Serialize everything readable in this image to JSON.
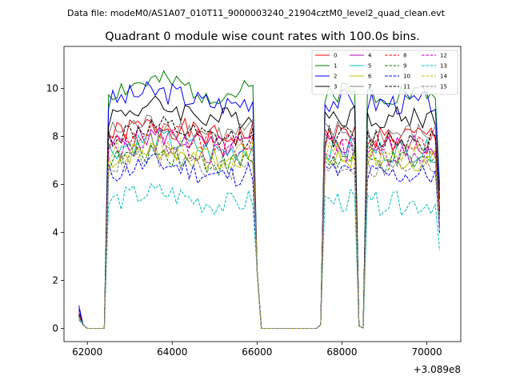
{
  "suptitle": "Data file: modeM0/AS1A07_010T11_9000003240_21904cztM0_level2_quad_clean.evt",
  "chart_data": {
    "type": "line",
    "title": "Quadrant 0 module wise count rates with 100.0s bins.",
    "xlabel": "",
    "ylabel": "",
    "x_offset_label": "+3.089e8",
    "xlim": [
      61450,
      70800
    ],
    "ylim": [
      -0.55,
      11.75
    ],
    "x_ticks": [
      62000,
      64000,
      66000,
      68000,
      70000
    ],
    "x_tick_labels": [
      "62000",
      "64000",
      "66000",
      "68000",
      "70000"
    ],
    "y_ticks": [
      0,
      2,
      4,
      6,
      8,
      10
    ],
    "y_tick_labels": [
      "0",
      "2",
      "4",
      "6",
      "8",
      "10"
    ],
    "grid": false,
    "legend_position": "top-right",
    "x_start": 61800,
    "x_step": 100,
    "series": [
      {
        "name": "0",
        "color": "#ff0000",
        "dash": "solid",
        "level": 8.2,
        "amp": 0.35,
        "low_end": 0.7,
        "seed": 1
      },
      {
        "name": "1",
        "color": "#008000",
        "dash": "solid",
        "level": 10.0,
        "amp": 0.35,
        "low_end": 0.5,
        "seed": 2
      },
      {
        "name": "2",
        "color": "#0000ff",
        "dash": "solid",
        "level": 9.6,
        "amp": 0.35,
        "low_end": 0.95,
        "seed": 3
      },
      {
        "name": "3",
        "color": "#000000",
        "dash": "solid",
        "level": 9.0,
        "amp": 0.35,
        "low_end": 0.6,
        "seed": 4
      },
      {
        "name": "4",
        "color": "#bf00bf",
        "dash": "solid",
        "level": 7.8,
        "amp": 0.35,
        "low_end": 0.5,
        "seed": 5
      },
      {
        "name": "5",
        "color": "#00bfbf",
        "dash": "solid",
        "level": 7.6,
        "amp": 0.35,
        "low_end": 0.4,
        "seed": 6
      },
      {
        "name": "6",
        "color": "#bfbf00",
        "dash": "solid",
        "level": 7.2,
        "amp": 0.35,
        "low_end": 0.45,
        "seed": 7
      },
      {
        "name": "7",
        "color": "#808080",
        "dash": "solid",
        "level": 8.3,
        "amp": 0.35,
        "low_end": 0.55,
        "seed": 8
      },
      {
        "name": "8",
        "color": "#ff0000",
        "dash": "dashed",
        "level": 7.9,
        "amp": 0.35,
        "low_end": 0.6,
        "seed": 9
      },
      {
        "name": "9",
        "color": "#008000",
        "dash": "dashed",
        "level": 7.1,
        "amp": 0.35,
        "low_end": 0.5,
        "seed": 10
      },
      {
        "name": "10",
        "color": "#0000ff",
        "dash": "dashed",
        "level": 6.6,
        "amp": 0.3,
        "low_end": 0.8,
        "seed": 11
      },
      {
        "name": "11",
        "color": "#000000",
        "dash": "dashed",
        "level": 8.1,
        "amp": 0.35,
        "low_end": 0.55,
        "seed": 12
      },
      {
        "name": "12",
        "color": "#bf00bf",
        "dash": "dashed",
        "level": 7.5,
        "amp": 0.35,
        "low_end": 0.5,
        "seed": 13
      },
      {
        "name": "13",
        "color": "#00bfbf",
        "dash": "dashed",
        "level": 5.4,
        "amp": 0.3,
        "low_end": 0.35,
        "seed": 14
      },
      {
        "name": "14",
        "color": "#bfbf00",
        "dash": "dashed",
        "level": 7.4,
        "amp": 0.35,
        "low_end": 0.45,
        "seed": 15
      },
      {
        "name": "15",
        "color": "#808080",
        "dash": "dashed",
        "level": 6.9,
        "amp": 0.35,
        "low_end": 0.5,
        "seed": 16
      }
    ]
  }
}
